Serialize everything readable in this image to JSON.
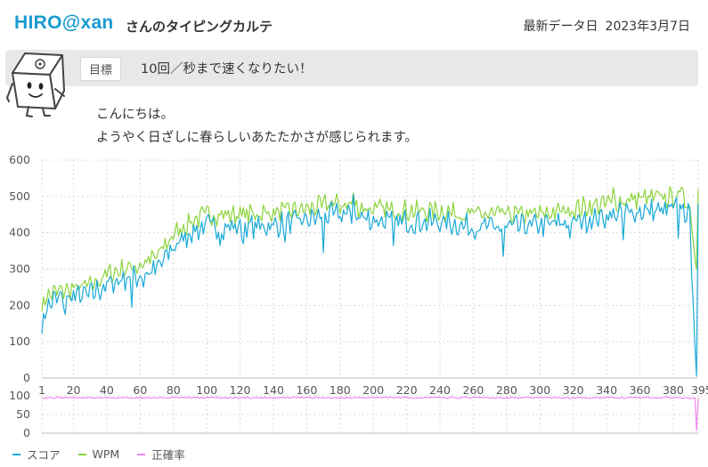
{
  "profile": {
    "user_name": "HIRO@xan",
    "title_suffix": "さんのタイピングカルテ",
    "last_date_label": "最新データ日",
    "last_date_value": "2023年3月7日"
  },
  "goal": {
    "tag": "目標",
    "text": "10回／秒まで速くなりたい！"
  },
  "greeting": {
    "line1": "こんにちは。",
    "line2": "ようやく日ざしに春らしいあたたかさが感じられます。"
  },
  "colors": {
    "score": "#1aa9d8",
    "wpm": "#8cd43c",
    "accuracy": "#ee88ee",
    "grid": "#d9d9d9",
    "axis_text": "#555555"
  },
  "chart_data": {
    "type": "line",
    "x_ticks": [
      "1",
      "20",
      "40",
      "60",
      "80",
      "100",
      "120",
      "140",
      "160",
      "180",
      "200",
      "220",
      "240",
      "260",
      "280",
      "300",
      "320",
      "340",
      "360",
      "380",
      "395"
    ],
    "x_range": [
      1,
      395
    ],
    "main_panel": {
      "ylim": [
        0,
        600
      ],
      "y_ticks": [
        "600",
        "500",
        "400",
        "300",
        "200",
        "100",
        "0"
      ],
      "grid": true,
      "anchors": {
        "score": [
          [
            1,
            135
          ],
          [
            3,
            185
          ],
          [
            8,
            215
          ],
          [
            20,
            225
          ],
          [
            30,
            230
          ],
          [
            40,
            255
          ],
          [
            50,
            275
          ],
          [
            60,
            280
          ],
          [
            70,
            300
          ],
          [
            80,
            360
          ],
          [
            90,
            400
          ],
          [
            100,
            420
          ],
          [
            120,
            415
          ],
          [
            140,
            420
          ],
          [
            160,
            435
          ],
          [
            175,
            450
          ],
          [
            185,
            450
          ],
          [
            200,
            435
          ],
          [
            220,
            430
          ],
          [
            240,
            430
          ],
          [
            260,
            415
          ],
          [
            280,
            415
          ],
          [
            300,
            420
          ],
          [
            320,
            430
          ],
          [
            340,
            445
          ],
          [
            360,
            460
          ],
          [
            375,
            460
          ],
          [
            385,
            470
          ],
          [
            390,
            440
          ],
          [
            393,
            90
          ],
          [
            394,
            5
          ],
          [
            395,
            480
          ]
        ],
        "wpm": [
          [
            1,
            195
          ],
          [
            3,
            220
          ],
          [
            8,
            235
          ],
          [
            20,
            245
          ],
          [
            30,
            255
          ],
          [
            40,
            285
          ],
          [
            50,
            300
          ],
          [
            60,
            310
          ],
          [
            70,
            335
          ],
          [
            80,
            395
          ],
          [
            90,
            430
          ],
          [
            100,
            450
          ],
          [
            120,
            450
          ],
          [
            140,
            455
          ],
          [
            160,
            465
          ],
          [
            175,
            480
          ],
          [
            185,
            475
          ],
          [
            200,
            465
          ],
          [
            220,
            460
          ],
          [
            240,
            460
          ],
          [
            260,
            450
          ],
          [
            280,
            450
          ],
          [
            300,
            450
          ],
          [
            320,
            465
          ],
          [
            340,
            480
          ],
          [
            360,
            495
          ],
          [
            375,
            495
          ],
          [
            385,
            500
          ],
          [
            390,
            475
          ],
          [
            393,
            330
          ],
          [
            394,
            300
          ],
          [
            395,
            520
          ]
        ]
      },
      "dips": {
        "score": [
          [
            15,
            175
          ],
          [
            55,
            195
          ],
          [
            62,
            250
          ],
          [
            108,
            365
          ],
          [
            122,
            370
          ],
          [
            147,
            375
          ],
          [
            170,
            345
          ],
          [
            188,
            505
          ],
          [
            212,
            365
          ],
          [
            278,
            335
          ],
          [
            318,
            385
          ],
          [
            350,
            380
          ],
          [
            383,
            385
          ]
        ],
        "wpm": [
          [
            188,
            510
          ],
          [
            344,
            525
          ],
          [
            383,
            515
          ]
        ]
      }
    },
    "accuracy_panel": {
      "ylim": [
        0,
        100
      ],
      "y_ticks": [
        "100",
        "50",
        "0"
      ],
      "baseline": 95,
      "end_dip": 6
    },
    "legend": [
      {
        "key": "score",
        "label": "スコア"
      },
      {
        "key": "wpm",
        "label": "WPM"
      },
      {
        "key": "accuracy",
        "label": "正確率"
      }
    ],
    "legend_position": "bottom-left"
  }
}
